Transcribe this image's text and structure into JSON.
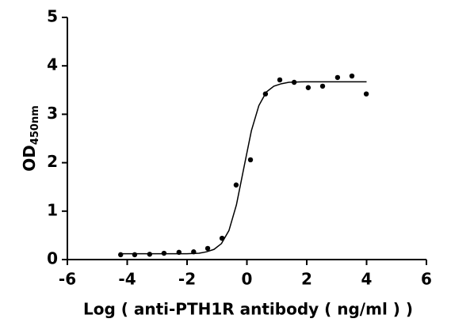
{
  "chart_data": {
    "type": "scatter",
    "x_label": "Log ( anti-PTH1R antibody ( ng/ml )    )",
    "y_label": "OD",
    "y_label_subscript": "450nm",
    "xlim": [
      -6,
      6
    ],
    "xticks": [
      -6,
      -4,
      -2,
      0,
      2,
      4,
      6
    ],
    "ylim": [
      0,
      5
    ],
    "yticks": [
      0,
      1,
      2,
      3,
      4,
      5
    ],
    "color": "#000000",
    "x": [
      -4.22,
      -3.75,
      -3.25,
      -2.77,
      -2.27,
      -1.78,
      -1.31,
      -0.83,
      -0.36,
      0.12,
      0.62,
      1.1,
      1.58,
      2.05,
      2.53,
      3.03,
      3.51,
      3.99
    ],
    "values": [
      0.1,
      0.1,
      0.11,
      0.13,
      0.15,
      0.16,
      0.23,
      0.44,
      1.54,
      2.06,
      3.42,
      3.71,
      3.66,
      3.55,
      3.58,
      3.76,
      3.79,
      3.42
    ],
    "fit": {
      "type": "line",
      "x": [
        -4.2,
        -3,
        -2,
        -1.6,
        -1.35,
        -1.1,
        -0.85,
        -0.6,
        -0.35,
        -0.1,
        0.15,
        0.4,
        0.65,
        0.9,
        1.15,
        1.4,
        1.9,
        3,
        4
      ],
      "values": [
        0.12,
        0.12,
        0.12,
        0.13,
        0.16,
        0.21,
        0.33,
        0.6,
        1.13,
        1.9,
        2.66,
        3.18,
        3.46,
        3.58,
        3.63,
        3.66,
        3.67,
        3.67,
        3.67
      ]
    }
  }
}
